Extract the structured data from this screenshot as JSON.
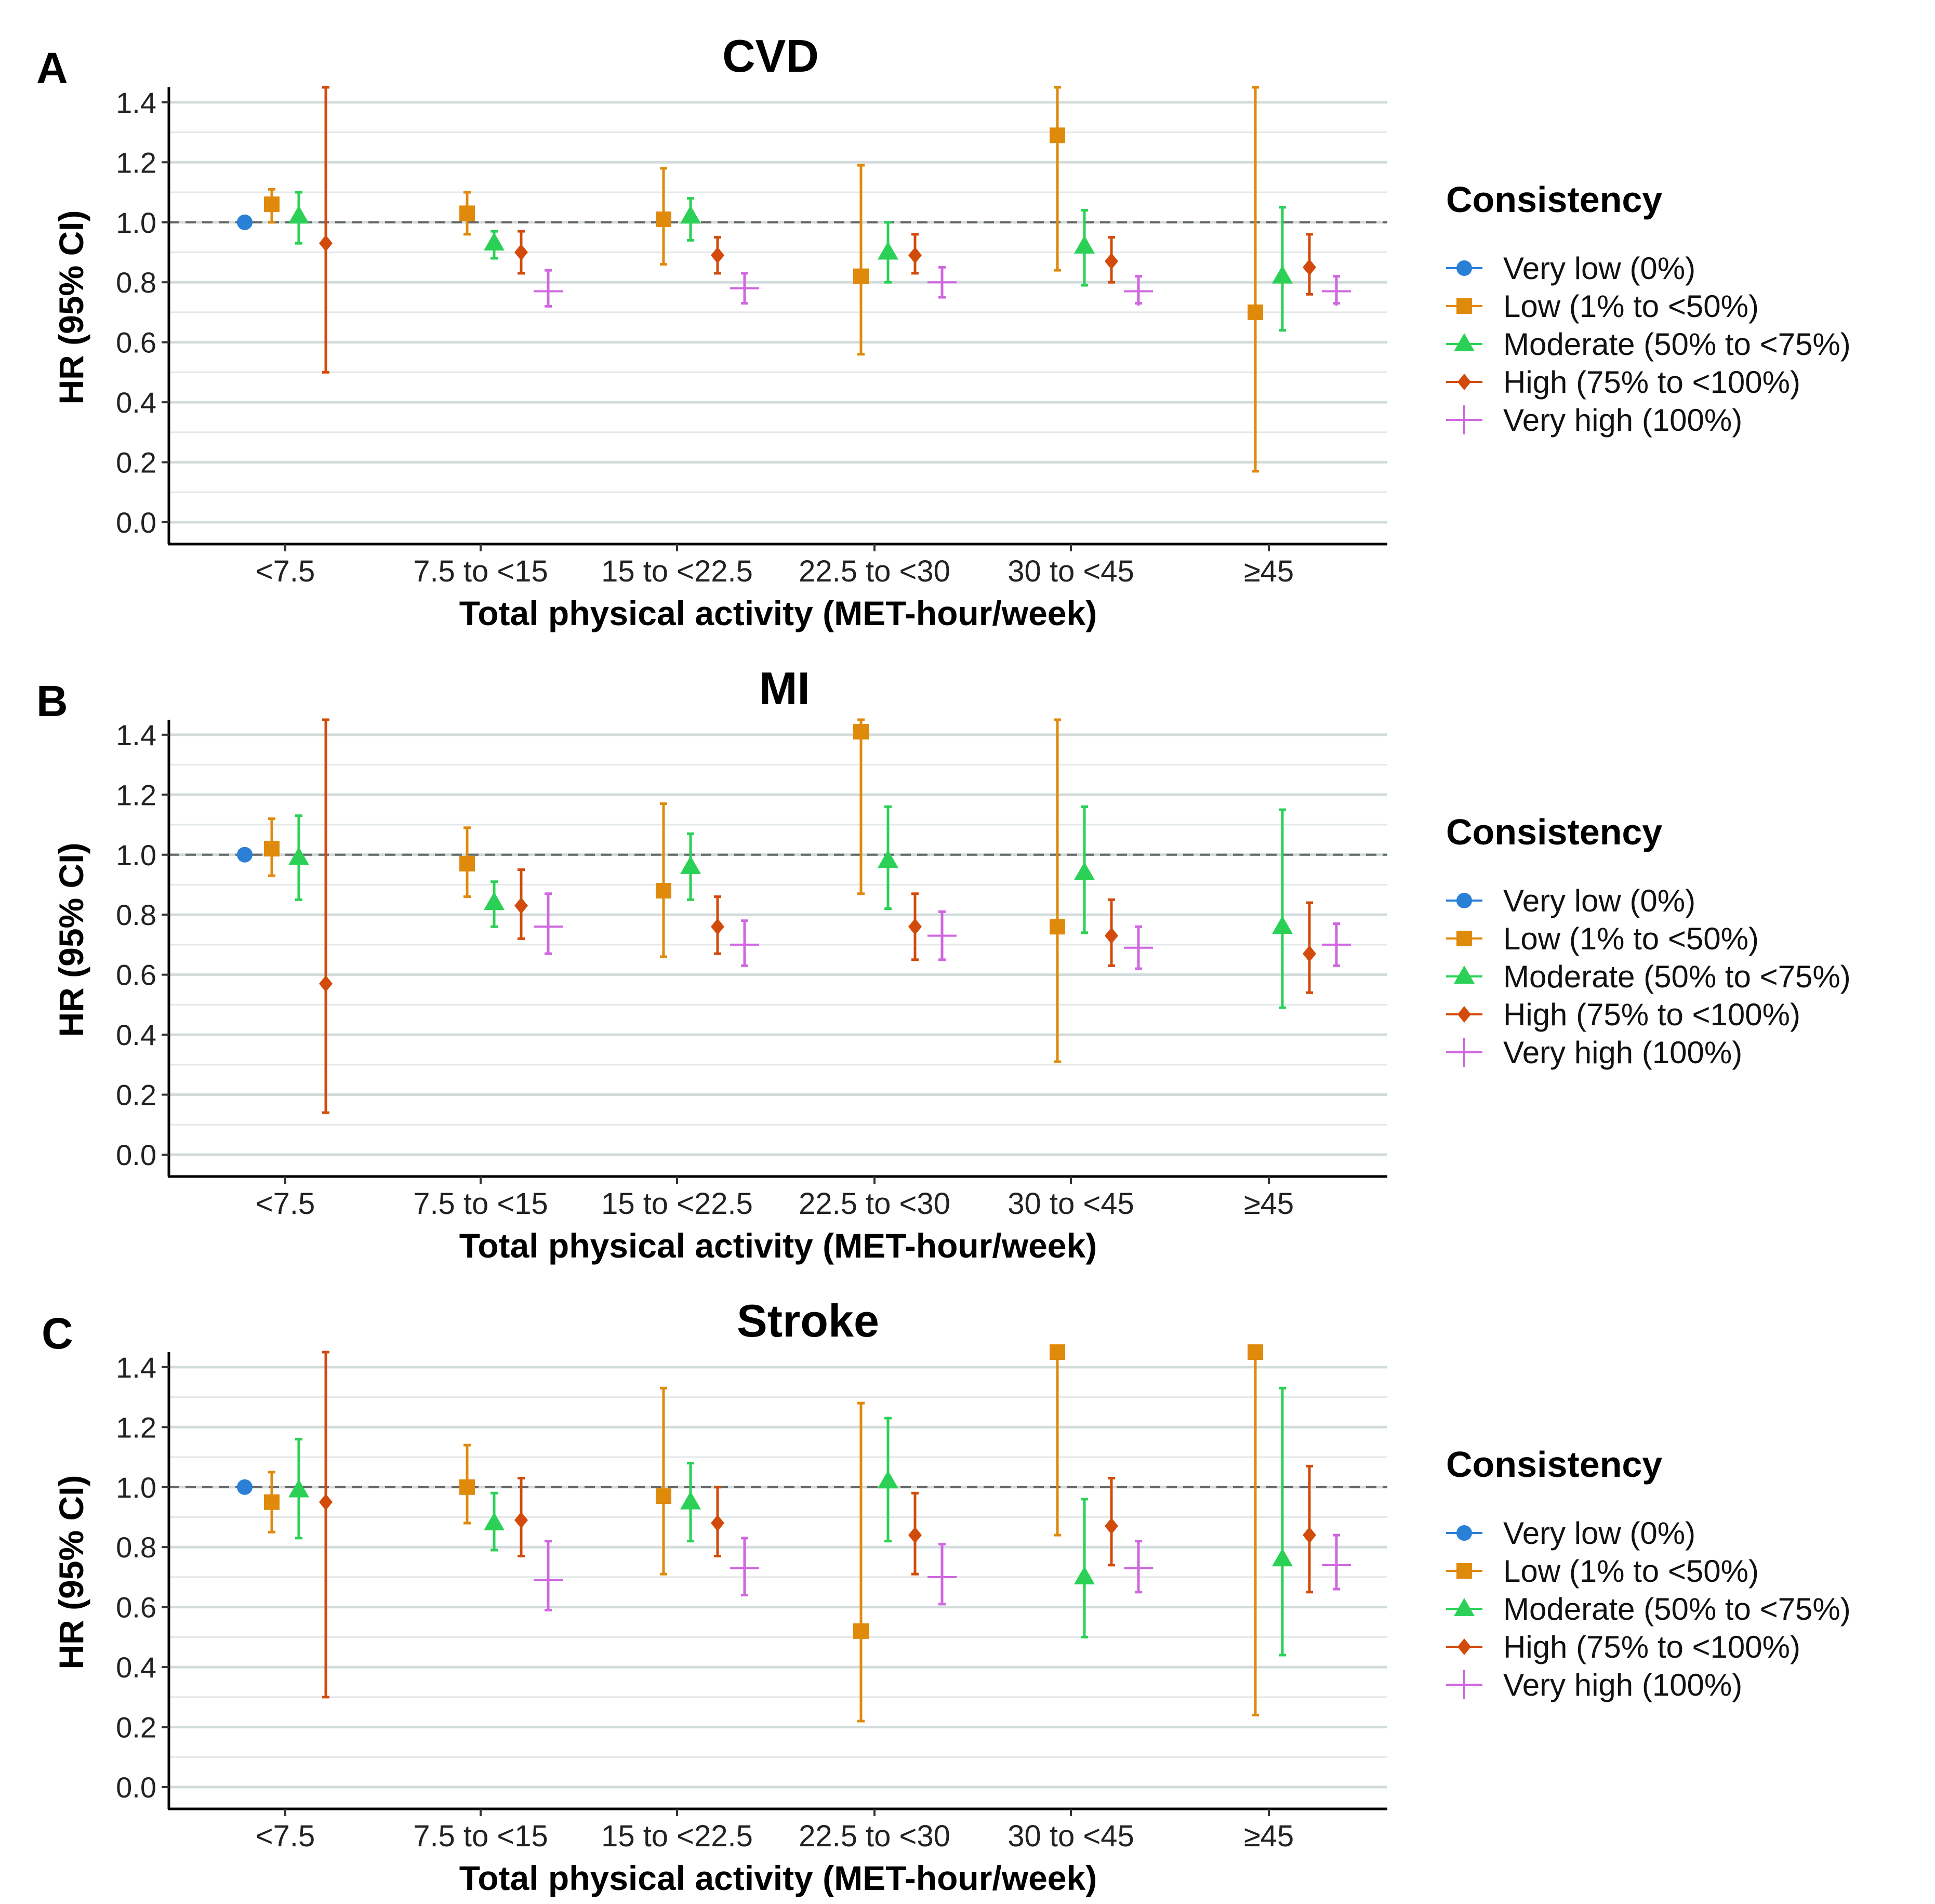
{
  "consistency_legend": {
    "title": "Consistency",
    "entries": [
      {
        "name": "Very low (0%)",
        "color": "#2a7fd6",
        "marker": "circle"
      },
      {
        "name": "Low (1% to <50%)",
        "color": "#e08a0b",
        "marker": "square"
      },
      {
        "name": "Moderate (50% to <75%)",
        "color": "#2bd156",
        "marker": "triangle"
      },
      {
        "name": "High (75% to <100%)",
        "color": "#d24b0b",
        "marker": "diamond"
      },
      {
        "name": "Very high (100%)",
        "color": "#d066e0",
        "marker": "plus"
      }
    ]
  },
  "chart_data": [
    {
      "type": "scatter",
      "panel": "A",
      "title": "CVD",
      "xlabel": "Total physical activity (MET-hour/week)",
      "ylabel": "HR (95% CI)",
      "ylim": [
        0,
        1.45
      ],
      "yticks": [
        "0.0",
        "0.2",
        "0.4",
        "0.6",
        "0.8",
        "1.0",
        "1.2",
        "1.4"
      ],
      "reference_line": 1.0,
      "categories": [
        "<7.5",
        "7.5 to <15",
        "15 to <22.5",
        "22.5 to <30",
        "30 to <45",
        "≥45"
      ],
      "series": [
        {
          "name": "Very low (0%)",
          "points": [
            [
              1.0,
              1.0,
              1.0
            ],
            null,
            null,
            null,
            null,
            null
          ]
        },
        {
          "name": "Low (1% to <50%)",
          "points": [
            [
              1.06,
              1.0,
              1.11
            ],
            [
              1.03,
              0.96,
              1.1
            ],
            [
              1.01,
              0.86,
              1.18
            ],
            [
              0.82,
              0.56,
              1.19
            ],
            [
              1.29,
              0.84,
              1.46
            ],
            [
              0.7,
              0.17,
              1.46
            ]
          ]
        },
        {
          "name": "Moderate (50% to <75%)",
          "points": [
            [
              1.02,
              0.93,
              1.1
            ],
            [
              0.93,
              0.88,
              0.97
            ],
            [
              1.02,
              0.94,
              1.08
            ],
            [
              0.9,
              0.8,
              1.0
            ],
            [
              0.92,
              0.79,
              1.04
            ],
            [
              0.82,
              0.64,
              1.05
            ]
          ]
        },
        {
          "name": "High (75% to <100%)",
          "points": [
            [
              0.93,
              0.5,
              1.46
            ],
            [
              0.9,
              0.83,
              0.97
            ],
            [
              0.89,
              0.83,
              0.95
            ],
            [
              0.89,
              0.83,
              0.96
            ],
            [
              0.87,
              0.8,
              0.95
            ],
            [
              0.85,
              0.76,
              0.96
            ]
          ]
        },
        {
          "name": "Very high (100%)",
          "points": [
            null,
            [
              0.77,
              0.72,
              0.84
            ],
            [
              0.78,
              0.73,
              0.83
            ],
            [
              0.8,
              0.75,
              0.85
            ],
            [
              0.77,
              0.73,
              0.82
            ],
            [
              0.77,
              0.73,
              0.82
            ]
          ]
        }
      ]
    },
    {
      "type": "scatter",
      "panel": "B",
      "title": "MI",
      "xlabel": "Total physical activity (MET-hour/week)",
      "ylabel": "HR (95% CI)",
      "ylim": [
        0,
        1.45
      ],
      "yticks": [
        "0.0",
        "0.2",
        "0.4",
        "0.6",
        "0.8",
        "1.0",
        "1.2",
        "1.4"
      ],
      "reference_line": 1.0,
      "categories": [
        "<7.5",
        "7.5 to <15",
        "15 to <22.5",
        "22.5 to <30",
        "30 to <45",
        "≥45"
      ],
      "series": [
        {
          "name": "Very low (0%)",
          "points": [
            [
              1.0,
              1.0,
              1.0
            ],
            null,
            null,
            null,
            null,
            null
          ]
        },
        {
          "name": "Low (1% to <50%)",
          "points": [
            [
              1.02,
              0.93,
              1.12
            ],
            [
              0.97,
              0.86,
              1.09
            ],
            [
              0.88,
              0.66,
              1.17
            ],
            [
              1.41,
              0.87,
              1.46
            ],
            [
              0.76,
              0.31,
              1.46
            ],
            null
          ]
        },
        {
          "name": "Moderate (50% to <75%)",
          "points": [
            [
              0.99,
              0.85,
              1.13
            ],
            [
              0.84,
              0.76,
              0.91
            ],
            [
              0.96,
              0.85,
              1.07
            ],
            [
              0.98,
              0.82,
              1.16
            ],
            [
              0.94,
              0.74,
              1.16
            ],
            [
              0.76,
              0.49,
              1.15
            ]
          ]
        },
        {
          "name": "High (75% to <100%)",
          "points": [
            [
              0.57,
              0.14,
              1.46
            ],
            [
              0.83,
              0.72,
              0.95
            ],
            [
              0.76,
              0.67,
              0.86
            ],
            [
              0.76,
              0.65,
              0.87
            ],
            [
              0.73,
              0.63,
              0.85
            ],
            [
              0.67,
              0.54,
              0.84
            ]
          ]
        },
        {
          "name": "Very high (100%)",
          "points": [
            null,
            [
              0.76,
              0.67,
              0.87
            ],
            [
              0.7,
              0.63,
              0.78
            ],
            [
              0.73,
              0.65,
              0.81
            ],
            [
              0.69,
              0.62,
              0.76
            ],
            [
              0.7,
              0.63,
              0.77
            ]
          ]
        }
      ]
    },
    {
      "type": "scatter",
      "panel": "C",
      "title": "Stroke",
      "xlabel": "Total physical activity (MET-hour/week)",
      "ylabel": "HR (95% CI)",
      "ylim": [
        0,
        1.45
      ],
      "yticks": [
        "0.0",
        "0.2",
        "0.4",
        "0.6",
        "0.8",
        "1.0",
        "1.2",
        "1.4"
      ],
      "reference_line": 1.0,
      "categories": [
        "<7.5",
        "7.5 to <15",
        "15 to <22.5",
        "22.5 to <30",
        "30 to <45",
        "≥45"
      ],
      "series": [
        {
          "name": "Very low (0%)",
          "points": [
            [
              1.0,
              1.0,
              1.0
            ],
            null,
            null,
            null,
            null,
            null
          ]
        },
        {
          "name": "Low (1% to <50%)",
          "points": [
            [
              0.95,
              0.85,
              1.05
            ],
            [
              1.0,
              0.88,
              1.14
            ],
            [
              0.97,
              0.71,
              1.33
            ],
            [
              0.52,
              0.22,
              1.28
            ],
            [
              1.46,
              0.84,
              1.46
            ],
            [
              1.46,
              0.24,
              1.46
            ]
          ]
        },
        {
          "name": "Moderate (50% to <75%)",
          "points": [
            [
              0.99,
              0.83,
              1.16
            ],
            [
              0.88,
              0.79,
              0.98
            ],
            [
              0.95,
              0.82,
              1.08
            ],
            [
              1.02,
              0.82,
              1.23
            ],
            [
              0.7,
              0.5,
              0.96
            ],
            [
              0.76,
              0.44,
              1.33
            ]
          ]
        },
        {
          "name": "High (75% to <100%)",
          "points": [
            [
              0.95,
              0.3,
              1.46
            ],
            [
              0.89,
              0.77,
              1.03
            ],
            [
              0.88,
              0.77,
              1.0
            ],
            [
              0.84,
              0.71,
              0.98
            ],
            [
              0.87,
              0.74,
              1.03
            ],
            [
              0.84,
              0.65,
              1.07
            ]
          ]
        },
        {
          "name": "Very high (100%)",
          "points": [
            null,
            [
              0.69,
              0.59,
              0.82
            ],
            [
              0.73,
              0.64,
              0.83
            ],
            [
              0.7,
              0.61,
              0.81
            ],
            [
              0.73,
              0.65,
              0.82
            ],
            [
              0.74,
              0.66,
              0.84
            ]
          ]
        }
      ]
    }
  ]
}
